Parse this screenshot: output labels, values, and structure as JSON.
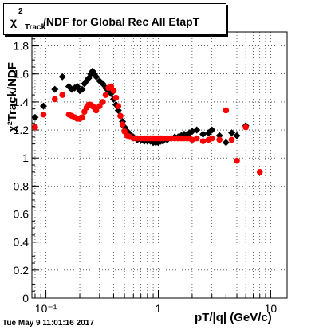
{
  "title": {
    "chi": "χ",
    "sup": "2",
    "sub": "Track",
    "rest": "/NDF for Global Rec All EtapT"
  },
  "timestamp": "Tue May  9 11:01:16 2017",
  "chart_data": {
    "type": "scatter",
    "xscale": "log",
    "xlim": [
      0.075,
      14
    ],
    "ylim": [
      0,
      1.9
    ],
    "grid": true,
    "xlabel": "pT/|q| (GeV/c)",
    "ylabel": "χ²Track/NDF",
    "x_ticks": [
      {
        "v": 0.1,
        "label": "10⁻¹"
      },
      {
        "v": 1,
        "label": "1"
      },
      {
        "v": 10,
        "label": "10"
      }
    ],
    "y_ticks": [
      0,
      0.2,
      0.4,
      0.6,
      0.8,
      1,
      1.2,
      1.4,
      1.6,
      1.8
    ],
    "series": [
      {
        "color": "#000000",
        "marker": "diamond",
        "points": [
          [
            0.08,
            1.29
          ],
          [
            0.095,
            1.37
          ],
          [
            0.12,
            1.49
          ],
          [
            0.14,
            1.58
          ],
          [
            0.16,
            1.51
          ],
          [
            0.17,
            1.49
          ],
          [
            0.18,
            1.5
          ],
          [
            0.19,
            1.51
          ],
          [
            0.2,
            1.48
          ],
          [
            0.21,
            1.49
          ],
          [
            0.22,
            1.53
          ],
          [
            0.23,
            1.55
          ],
          [
            0.24,
            1.57
          ],
          [
            0.25,
            1.6
          ],
          [
            0.26,
            1.62
          ],
          [
            0.27,
            1.6
          ],
          [
            0.28,
            1.58
          ],
          [
            0.3,
            1.55
          ],
          [
            0.32,
            1.53
          ],
          [
            0.34,
            1.5
          ],
          [
            0.36,
            1.48
          ],
          [
            0.38,
            1.46
          ],
          [
            0.4,
            1.42
          ],
          [
            0.42,
            1.38
          ],
          [
            0.44,
            1.34
          ],
          [
            0.46,
            1.3
          ],
          [
            0.48,
            1.26
          ],
          [
            0.5,
            1.22
          ],
          [
            0.53,
            1.19
          ],
          [
            0.56,
            1.17
          ],
          [
            0.6,
            1.15
          ],
          [
            0.65,
            1.13
          ],
          [
            0.7,
            1.13
          ],
          [
            0.75,
            1.12
          ],
          [
            0.8,
            1.12
          ],
          [
            0.85,
            1.12
          ],
          [
            0.9,
            1.11
          ],
          [
            0.95,
            1.11
          ],
          [
            1.0,
            1.11
          ],
          [
            1.05,
            1.12
          ],
          [
            1.1,
            1.12
          ],
          [
            1.2,
            1.13
          ],
          [
            1.3,
            1.14
          ],
          [
            1.4,
            1.15
          ],
          [
            1.5,
            1.15
          ],
          [
            1.6,
            1.16
          ],
          [
            1.7,
            1.17
          ],
          [
            1.8,
            1.17
          ],
          [
            1.9,
            1.18
          ],
          [
            2.0,
            1.19
          ],
          [
            2.2,
            1.2
          ],
          [
            2.5,
            1.17
          ],
          [
            2.8,
            1.18
          ],
          [
            3.0,
            1.2
          ],
          [
            3.5,
            1.16
          ],
          [
            4.0,
            1.11
          ],
          [
            4.5,
            1.18
          ],
          [
            5.0,
            1.16
          ],
          [
            6.0,
            1.23
          ]
        ]
      },
      {
        "color": "#ff0000",
        "marker": "circle",
        "points": [
          [
            0.08,
            1.22
          ],
          [
            0.095,
            1.31
          ],
          [
            0.12,
            1.42
          ],
          [
            0.14,
            1.45
          ],
          [
            0.16,
            1.31
          ],
          [
            0.17,
            1.3
          ],
          [
            0.18,
            1.29
          ],
          [
            0.19,
            1.28
          ],
          [
            0.2,
            1.28
          ],
          [
            0.21,
            1.29
          ],
          [
            0.22,
            1.33
          ],
          [
            0.23,
            1.36
          ],
          [
            0.24,
            1.38
          ],
          [
            0.25,
            1.38
          ],
          [
            0.26,
            1.37
          ],
          [
            0.27,
            1.36
          ],
          [
            0.28,
            1.34
          ],
          [
            0.3,
            1.37
          ],
          [
            0.32,
            1.4
          ],
          [
            0.34,
            1.45
          ],
          [
            0.36,
            1.5
          ],
          [
            0.38,
            1.51
          ],
          [
            0.4,
            1.48
          ],
          [
            0.42,
            1.43
          ],
          [
            0.44,
            1.37
          ],
          [
            0.46,
            1.3
          ],
          [
            0.48,
            1.24
          ],
          [
            0.5,
            1.19
          ],
          [
            0.53,
            1.16
          ],
          [
            0.56,
            1.15
          ],
          [
            0.6,
            1.14
          ],
          [
            0.65,
            1.14
          ],
          [
            0.7,
            1.14
          ],
          [
            0.75,
            1.14
          ],
          [
            0.8,
            1.14
          ],
          [
            0.85,
            1.14
          ],
          [
            0.9,
            1.14
          ],
          [
            0.95,
            1.14
          ],
          [
            1.0,
            1.14
          ],
          [
            1.05,
            1.14
          ],
          [
            1.1,
            1.14
          ],
          [
            1.2,
            1.14
          ],
          [
            1.3,
            1.14
          ],
          [
            1.4,
            1.14
          ],
          [
            1.5,
            1.14
          ],
          [
            1.6,
            1.14
          ],
          [
            1.7,
            1.14
          ],
          [
            1.8,
            1.14
          ],
          [
            1.9,
            1.14
          ],
          [
            2.0,
            1.13
          ],
          [
            2.2,
            1.14
          ],
          [
            2.5,
            1.12
          ],
          [
            2.8,
            1.13
          ],
          [
            3.0,
            1.14
          ],
          [
            3.5,
            1.13
          ],
          [
            4.0,
            1.34
          ],
          [
            4.5,
            1.13
          ],
          [
            5.0,
            0.98
          ],
          [
            6.0,
            1.22
          ],
          [
            8.0,
            0.9
          ]
        ]
      }
    ]
  }
}
